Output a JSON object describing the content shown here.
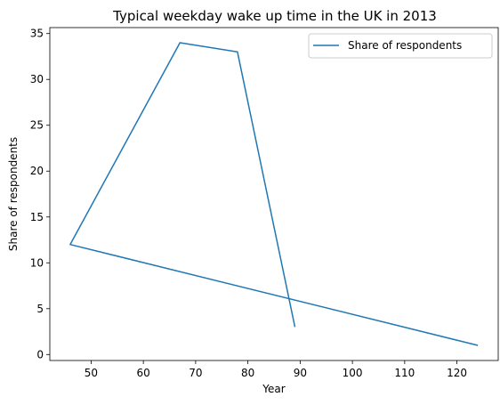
{
  "chart_data": {
    "type": "line",
    "title": "Typical weekday wake up time in the UK in 2013",
    "xlabel": "Year",
    "ylabel": "Share of respondents",
    "xlim": [
      42.1,
      127.9
    ],
    "ylim": [
      -0.65,
      35.65
    ],
    "xticks": [
      50,
      60,
      70,
      80,
      90,
      100,
      110,
      120
    ],
    "yticks": [
      0,
      5,
      10,
      15,
      20,
      25,
      30,
      35
    ],
    "grid": false,
    "legend_position": "top-right",
    "series": [
      {
        "name": "Share of respondents",
        "color": "#1f77b4",
        "x": [
          124,
          46,
          67,
          78,
          89
        ],
        "y": [
          1,
          12,
          34,
          33,
          3
        ]
      }
    ]
  }
}
